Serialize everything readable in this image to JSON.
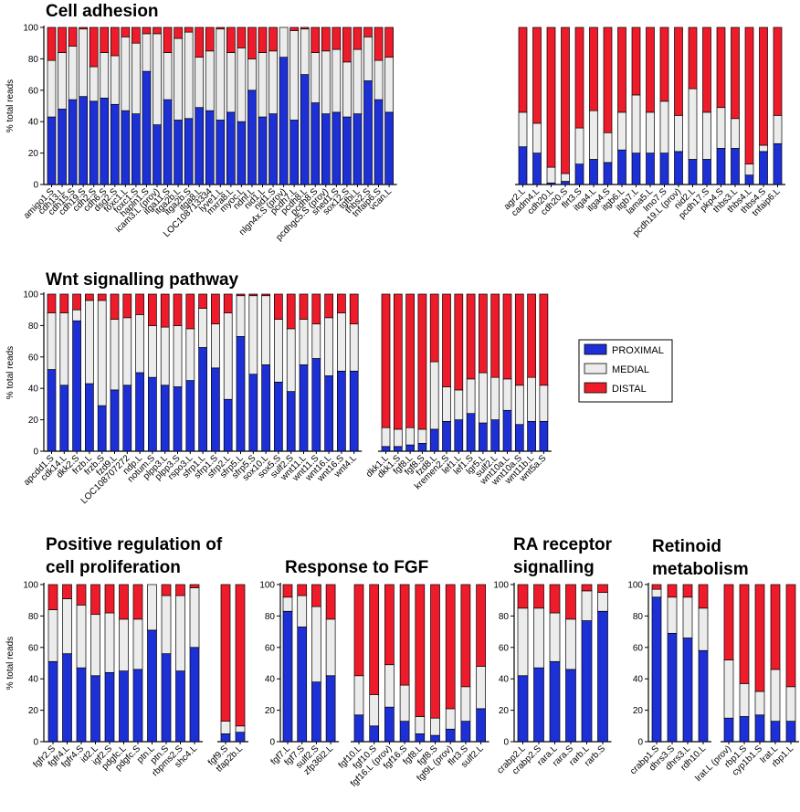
{
  "colors": {
    "proximal": "#1d30d6",
    "medial": "#ececec",
    "distal": "#ee1c2a"
  },
  "legend": {
    "proximal": "PROXIMAL",
    "medial": "MEDIAL",
    "distal": "DISTAL"
  },
  "chart_data": [
    {
      "id": "cell_adhesion",
      "type": "bar",
      "stacked": true,
      "title": "Cell adhesion",
      "ylabel": "% total reads",
      "ylim": [
        0,
        100
      ],
      "yticks": [
        0,
        20,
        40,
        60,
        80,
        100
      ],
      "groups": [
        {
          "categories": [
            "amigo1.S",
            "cdh13.L",
            "cdh15.S",
            "cdh19.S",
            "cdh2.S",
            "cdh6.S",
            "dsg2.S",
            "foxc1.L",
            "foxc1.S",
            "hapln1.S",
            "icam3.L (prov)",
            "itga11.S",
            "itga2b.L",
            "itga2b.S",
            "itga8.L",
            "LOC108713334",
            "lyve1.L",
            "mxra8.L",
            "myoc.L",
            "ndnf.L",
            "nid1.L",
            "nid1.S",
            "nlgn4x.S (prov)",
            "pcdh7.L",
            "pcdh8.L",
            "pcdh8.S",
            "pcdhgc5.S (prov)",
            "sned1.S",
            "sox12.S",
            "tgfbi.L",
            "thbs2.S",
            "tnfaip6.S",
            "vcan.L"
          ],
          "series": [
            {
              "name": "PROXIMAL",
              "values": [
                43,
                48,
                54,
                56,
                53,
                55,
                51,
                47,
                45,
                72,
                38,
                54,
                41,
                42,
                49,
                47,
                41,
                46,
                40,
                60,
                43,
                45,
                81,
                41,
                70,
                52,
                45,
                46,
                43,
                45,
                66,
                54,
                46
              ]
            },
            {
              "name": "MEDIAL",
              "values": [
                36,
                36,
                34,
                43,
                22,
                29,
                31,
                47,
                45,
                24,
                58,
                30,
                52,
                55,
                32,
                38,
                58,
                38,
                47,
                20,
                41,
                40,
                19,
                57,
                29,
                32,
                40,
                40,
                35,
                41,
                28,
                25,
                35
              ]
            },
            {
              "name": "DISTAL",
              "values": [
                21,
                16,
                12,
                1,
                25,
                16,
                18,
                6,
                10,
                4,
                4,
                16,
                7,
                3,
                19,
                15,
                1,
                16,
                13,
                20,
                16,
                15,
                0,
                2,
                1,
                16,
                15,
                14,
                22,
                14,
                6,
                21,
                19
              ]
            }
          ]
        },
        {
          "categories": [
            "agr2.L",
            "cadm4.L",
            "cdh20.L",
            "cdh20.S",
            "flrt3.S",
            "itga4.L",
            "itga4.S",
            "itgb6.L",
            "itgb7.L",
            "lama5.L",
            "lmo7.S",
            "pcdh19.L (prov)",
            "nid2.L",
            "pcdh17.S",
            "pkp4.S",
            "thbs3.L",
            "thbs4.L",
            "thbs4.S",
            "tnfaip6.L"
          ],
          "series": [
            {
              "name": "PROXIMAL",
              "values": [
                24,
                20,
                1,
                2,
                13,
                16,
                14,
                22,
                20,
                20,
                20,
                21,
                16,
                16,
                23,
                23,
                6,
                21,
                26
              ]
            },
            {
              "name": "MEDIAL",
              "values": [
                22,
                19,
                10,
                5,
                23,
                31,
                19,
                24,
                37,
                26,
                33,
                23,
                45,
                30,
                26,
                19,
                7,
                4,
                18
              ]
            },
            {
              "name": "DISTAL",
              "values": [
                54,
                61,
                89,
                93,
                64,
                53,
                67,
                54,
                43,
                54,
                47,
                56,
                39,
                54,
                51,
                58,
                87,
                75,
                56
              ]
            }
          ]
        }
      ]
    },
    {
      "id": "wnt",
      "type": "bar",
      "stacked": true,
      "title": "Wnt signalling pathway",
      "ylabel": "% total reads",
      "ylim": [
        0,
        100
      ],
      "yticks": [
        0,
        20,
        40,
        60,
        80,
        100
      ],
      "groups": [
        {
          "categories": [
            "apcdd1.S",
            "cdk14.L",
            "dkk2.S",
            "frzb.L",
            "frzb.S",
            "fzd9.L",
            "LOC108707272",
            "ndp.L",
            "notum.S",
            "plpp3.L",
            "plpp3.S",
            "rspo3.L",
            "sfrp1.L",
            "sfrp1.S",
            "sfrp2.L",
            "sfrp5.L",
            "sfrp5.S",
            "sox10.L",
            "sox5.S",
            "sulf2.S",
            "wnt11.L",
            "wnt11.S",
            "wnt16.L",
            "wnt16.S",
            "wnt4.L"
          ],
          "series": [
            {
              "name": "PROXIMAL",
              "values": [
                52,
                42,
                83,
                43,
                29,
                39,
                42,
                50,
                47,
                42,
                41,
                45,
                66,
                53,
                33,
                73,
                49,
                55,
                44,
                38,
                55,
                59,
                48,
                51,
                51
              ]
            },
            {
              "name": "MEDIAL",
              "values": [
                36,
                46,
                7,
                53,
                67,
                45,
                43,
                37,
                33,
                37,
                39,
                33,
                25,
                28,
                55,
                26,
                50,
                44,
                40,
                40,
                29,
                22,
                37,
                37,
                30
              ]
            },
            {
              "name": "DISTAL",
              "values": [
                12,
                12,
                10,
                4,
                4,
                16,
                15,
                13,
                20,
                21,
                20,
                22,
                9,
                19,
                12,
                1,
                1,
                1,
                16,
                22,
                16,
                19,
                15,
                12,
                19
              ]
            }
          ]
        },
        {
          "categories": [
            "dkk1.L",
            "dkk1.S",
            "fgf8.L",
            "fgf8.S",
            "fzd8.L",
            "kremen2.S",
            "lef1.L",
            "lef1.S",
            "lgr5.L",
            "sulf2.L",
            "wnt10a.L",
            "wnt10a.S",
            "wnt11b.L",
            "wnt5a.S"
          ],
          "series": [
            {
              "name": "PROXIMAL",
              "values": [
                3,
                3,
                4,
                5,
                14,
                19,
                20,
                24,
                18,
                20,
                26,
                17,
                19,
                19
              ]
            },
            {
              "name": "MEDIAL",
              "values": [
                12,
                11,
                11,
                9,
                43,
                22,
                19,
                22,
                32,
                27,
                20,
                25,
                28,
                23
              ]
            },
            {
              "name": "DISTAL",
              "values": [
                85,
                86,
                85,
                86,
                43,
                59,
                61,
                54,
                50,
                53,
                54,
                58,
                53,
                58
              ]
            }
          ]
        }
      ]
    },
    {
      "id": "prolif",
      "type": "bar",
      "stacked": true,
      "title": [
        "Positive regulation of",
        "cell proliferation"
      ],
      "ylabel": "% total reads",
      "ylim": [
        0,
        100
      ],
      "yticks": [
        0,
        20,
        40,
        60,
        80,
        100
      ],
      "groups": [
        {
          "categories": [
            "fgfr2.S",
            "fgfr4.L",
            "fgfr4.S",
            "id2.L",
            "igf2.S",
            "pdgfc.L",
            "pdgfc.S",
            "ptn.L",
            "ptn.S",
            "rbpms2.S",
            "shc4.L"
          ],
          "series": [
            {
              "name": "PROXIMAL",
              "values": [
                51,
                56,
                47,
                42,
                44,
                45,
                46,
                71,
                56,
                45,
                60
              ]
            },
            {
              "name": "MEDIAL",
              "values": [
                33,
                35,
                40,
                39,
                38,
                33,
                32,
                29,
                37,
                48,
                38
              ]
            },
            {
              "name": "DISTAL",
              "values": [
                16,
                9,
                13,
                19,
                18,
                22,
                22,
                0,
                7,
                7,
                2
              ]
            }
          ]
        },
        {
          "categories": [
            "fgf9.S",
            "tfap2b.L"
          ],
          "series": [
            {
              "name": "PROXIMAL",
              "values": [
                5,
                6
              ]
            },
            {
              "name": "MEDIAL",
              "values": [
                8,
                4
              ]
            },
            {
              "name": "DISTAL",
              "values": [
                87,
                90
              ]
            }
          ]
        }
      ]
    },
    {
      "id": "fgf",
      "type": "bar",
      "stacked": true,
      "title": [
        "Response to FGF"
      ],
      "ylim": [
        0,
        100
      ],
      "groups": [
        {
          "categories": [
            "fgf7.L",
            "fgf7.S",
            "sulf2.S",
            "zfp36l2.L"
          ],
          "series": [
            {
              "name": "PROXIMAL",
              "values": [
                83,
                73,
                38,
                42
              ]
            },
            {
              "name": "MEDIAL",
              "values": [
                9,
                20,
                48,
                36
              ]
            },
            {
              "name": "DISTAL",
              "values": [
                8,
                7,
                14,
                22
              ]
            }
          ]
        },
        {
          "categories": [
            "fgf10.L",
            "fgf10.S",
            "fgf16.L (prov)",
            "fgf16.S",
            "fgf8.L",
            "fgf8.S",
            "fgf9L (prov)",
            "flrt3.S",
            "sulf2.L"
          ],
          "series": [
            {
              "name": "PROXIMAL",
              "values": [
                17,
                10,
                22,
                13,
                5,
                4,
                8,
                13,
                21
              ]
            },
            {
              "name": "MEDIAL",
              "values": [
                25,
                20,
                27,
                23,
                11,
                11,
                13,
                22,
                27
              ]
            },
            {
              "name": "DISTAL",
              "values": [
                58,
                70,
                51,
                64,
                84,
                85,
                79,
                65,
                52
              ]
            }
          ]
        }
      ]
    },
    {
      "id": "ra",
      "type": "bar",
      "stacked": true,
      "title": [
        "RA receptor",
        "signalling"
      ],
      "ylim": [
        0,
        100
      ],
      "groups": [
        {
          "categories": [
            "crabp2.L",
            "crabp2.S",
            "rara.L",
            "rara.S",
            "rarb.L",
            "rarb.S"
          ],
          "series": [
            {
              "name": "PROXIMAL",
              "values": [
                42,
                47,
                51,
                46,
                77,
                83
              ]
            },
            {
              "name": "MEDIAL",
              "values": [
                43,
                38,
                31,
                32,
                19,
                12
              ]
            },
            {
              "name": "DISTAL",
              "values": [
                15,
                15,
                18,
                22,
                4,
                5
              ]
            }
          ]
        }
      ]
    },
    {
      "id": "retinoid",
      "type": "bar",
      "stacked": true,
      "title": [
        "Retinoid",
        "metabolism"
      ],
      "ylim": [
        0,
        100
      ],
      "groups": [
        {
          "categories": [
            "crabp1.S",
            "dhrs3.S",
            "dhrs3.L",
            "rdh10.L"
          ],
          "series": [
            {
              "name": "PROXIMAL",
              "values": [
                92,
                69,
                66,
                58
              ]
            },
            {
              "name": "MEDIAL",
              "values": [
                5,
                23,
                26,
                27
              ]
            },
            {
              "name": "DISTAL",
              "values": [
                3,
                8,
                8,
                15
              ]
            }
          ]
        },
        {
          "categories": [
            "lrat.L (prov)",
            "rbp1.S",
            "cyp1b1.S",
            "lrat.L",
            "rbp1.L"
          ],
          "series": [
            {
              "name": "PROXIMAL",
              "values": [
                15,
                16,
                17,
                13,
                13
              ]
            },
            {
              "name": "MEDIAL",
              "values": [
                37,
                21,
                15,
                33,
                22
              ]
            },
            {
              "name": "DISTAL",
              "values": [
                48,
                63,
                68,
                54,
                65
              ]
            }
          ]
        }
      ]
    }
  ]
}
